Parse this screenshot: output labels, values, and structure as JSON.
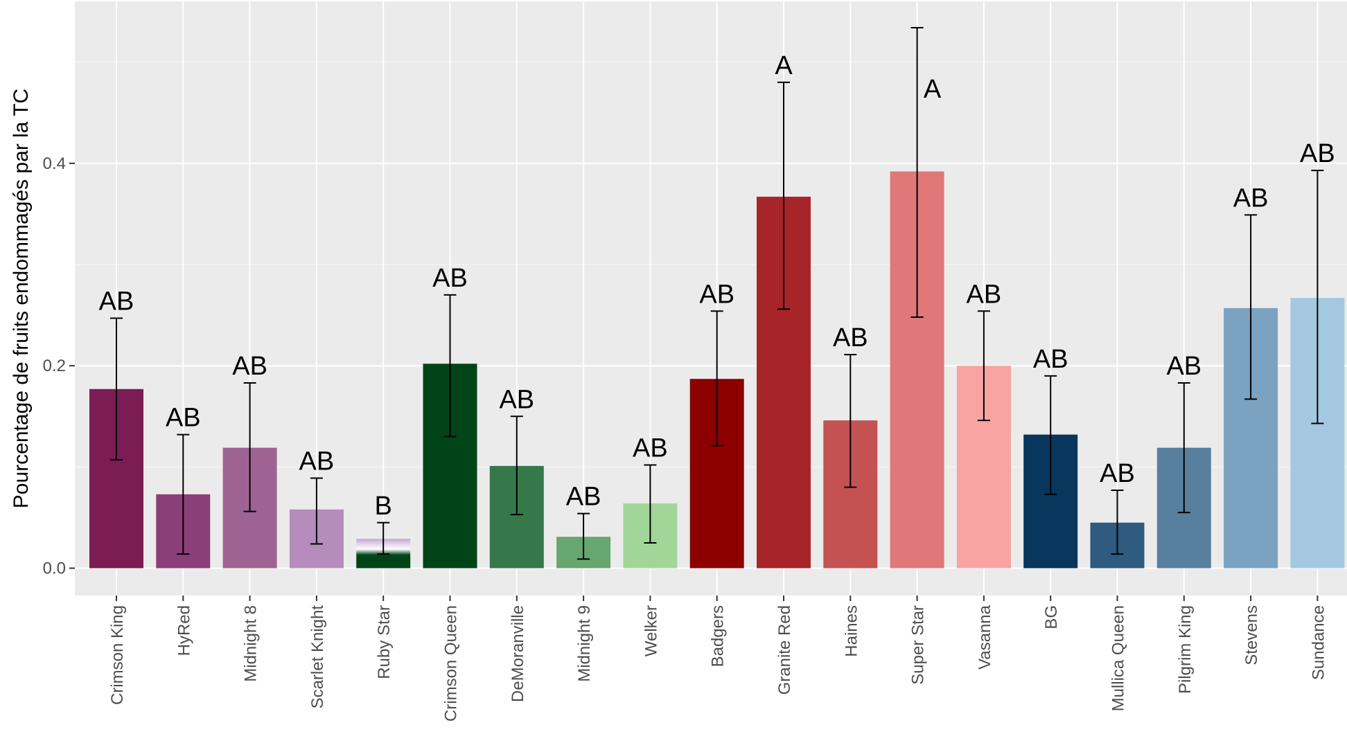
{
  "chart_data": {
    "type": "bar",
    "title": "",
    "xlabel": "",
    "ylabel": "Pourcentage de fruits endommagés par la TC",
    "ylim": [
      -0.027,
      0.56
    ],
    "yticks": [
      0.0,
      0.2,
      0.4
    ],
    "ytick_labels": [
      "0.0",
      "0.2",
      "0.4"
    ],
    "grid": true,
    "legend": "none",
    "categories": [
      "Crimson King",
      "HyRed",
      "Midnight 8",
      "Scarlet Knight",
      "Ruby Star",
      "Crimson Queen",
      "DeMoranville",
      "Midnight 9",
      "Welker",
      "Badgers",
      "Granite Red",
      "Haines",
      "Super Star",
      "Vasanna",
      "BG",
      "Mullica Queen",
      "Pilgrim King",
      "Stevens",
      "Sundance"
    ],
    "values": [
      0.177,
      0.073,
      0.119,
      0.058,
      0.029,
      0.202,
      0.101,
      0.031,
      0.064,
      0.187,
      0.367,
      0.146,
      0.392,
      0.2,
      0.132,
      0.045,
      0.119,
      0.257,
      0.267
    ],
    "error_low": [
      0.107,
      0.014,
      0.056,
      0.024,
      0.014,
      0.13,
      0.053,
      0.009,
      0.025,
      0.121,
      0.256,
      0.08,
      0.248,
      0.146,
      0.073,
      0.014,
      0.055,
      0.167,
      0.143
    ],
    "error_high": [
      0.247,
      0.132,
      0.183,
      0.089,
      0.045,
      0.27,
      0.15,
      0.054,
      0.102,
      0.254,
      0.48,
      0.211,
      0.534,
      0.254,
      0.19,
      0.077,
      0.183,
      0.349,
      0.393
    ],
    "significance": [
      "AB",
      "AB",
      "AB",
      "AB",
      "B",
      "AB",
      "AB",
      "AB",
      "AB",
      "AB",
      "A",
      "AB",
      "A",
      "AB",
      "AB",
      "AB",
      "AB",
      "AB",
      "AB"
    ],
    "colors": [
      "#7b1c55",
      "#8a3f79",
      "#9f6393",
      "#b58cbb",
      "#c4a8d4",
      "#004417",
      "#35794a",
      "#67a66f",
      "#a2d698",
      "#8c0000",
      "#a72529",
      "#c45252",
      "#e07779",
      "#f8a4a3",
      "#09365c",
      "#2e5b7f",
      "#597f9f",
      "#7ca2c1",
      "#a5c8e1"
    ],
    "colors_note_ruby_star_bottom": "#004417"
  },
  "style": {
    "panel_background": "#ebebeb",
    "grid_major": "#ffffff",
    "grid_minor": "#f5f5f5"
  }
}
